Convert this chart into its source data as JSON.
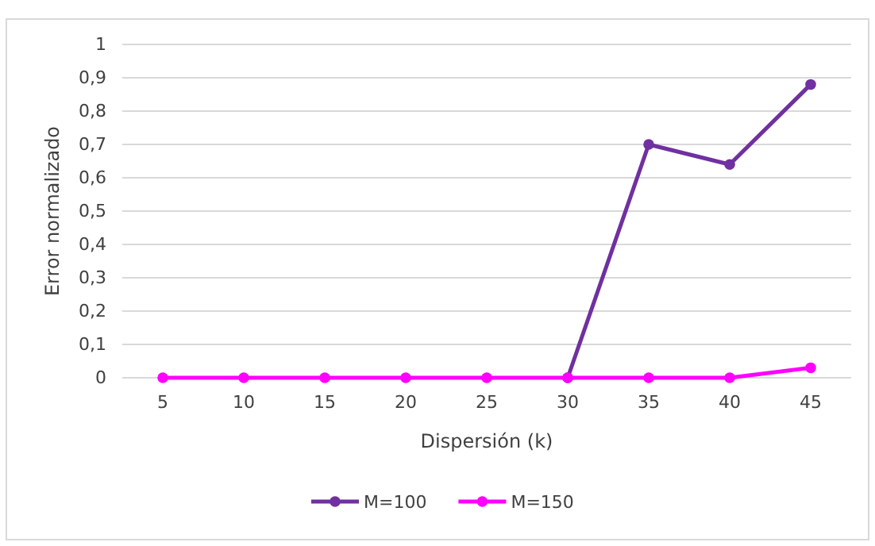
{
  "chart_data": {
    "type": "line",
    "xlabel": "Dispersión (k)",
    "ylabel": "Error normalizado",
    "categories": [
      "5",
      "10",
      "15",
      "20",
      "25",
      "30",
      "35",
      "40",
      "45"
    ],
    "series": [
      {
        "name": "M=100",
        "color": "#7030a0",
        "values": [
          null,
          null,
          null,
          null,
          null,
          0,
          0.7,
          0.64,
          0.88
        ]
      },
      {
        "name": "M=150",
        "color": "#ff00ff",
        "values": [
          0,
          0,
          0,
          0,
          0,
          0,
          0,
          0,
          0.03
        ]
      }
    ],
    "ylim": [
      0,
      1
    ],
    "yticks": [
      0,
      {
        "value": 0.1,
        "label": "0,1"
      },
      {
        "value": 0.2,
        "label": "0,2"
      },
      {
        "value": 0.3,
        "label": "0,3"
      },
      {
        "value": 0.4,
        "label": "0,4"
      },
      {
        "value": 0.5,
        "label": "0,5"
      },
      {
        "value": 0.6,
        "label": "0,6"
      },
      {
        "value": 0.7,
        "label": "0,7"
      },
      {
        "value": 0.8,
        "label": "0,8"
      },
      {
        "value": 0.9,
        "label": "0,9"
      },
      1
    ],
    "grid": "y",
    "legend": "bottom",
    "marker": "circle",
    "line_style": "solid"
  }
}
